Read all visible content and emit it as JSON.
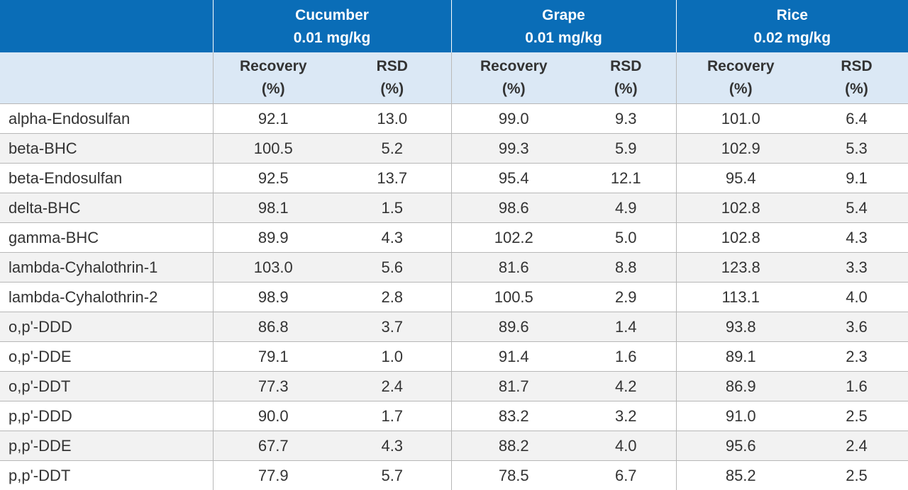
{
  "groups": [
    {
      "name": "Cucumber",
      "concentration": "0.01 mg/kg"
    },
    {
      "name": "Grape",
      "concentration": "0.01 mg/kg"
    },
    {
      "name": "Rice",
      "concentration": "0.02 mg/kg"
    }
  ],
  "subheaders": {
    "recovery_line1": "Recovery",
    "recovery_line2": "(%)",
    "rsd_line1": "RSD",
    "rsd_line2": "(%)"
  },
  "rows": [
    {
      "analyte": "alpha-Endosulfan",
      "values": [
        "92.1",
        "13.0",
        "99.0",
        "9.3",
        "101.0",
        "6.4"
      ]
    },
    {
      "analyte": "beta-BHC",
      "values": [
        "100.5",
        "5.2",
        "99.3",
        "5.9",
        "102.9",
        "5.3"
      ]
    },
    {
      "analyte": "beta-Endosulfan",
      "values": [
        "92.5",
        "13.7",
        "95.4",
        "12.1",
        "95.4",
        "9.1"
      ]
    },
    {
      "analyte": "delta-BHC",
      "values": [
        "98.1",
        "1.5",
        "98.6",
        "4.9",
        "102.8",
        "5.4"
      ]
    },
    {
      "analyte": "gamma-BHC",
      "values": [
        "89.9",
        "4.3",
        "102.2",
        "5.0",
        "102.8",
        "4.3"
      ]
    },
    {
      "analyte": "lambda-Cyhalothrin-1",
      "values": [
        "103.0",
        "5.6",
        "81.6",
        "8.8",
        "123.8",
        "3.3"
      ]
    },
    {
      "analyte": "lambda-Cyhalothrin-2",
      "values": [
        "98.9",
        "2.8",
        "100.5",
        "2.9",
        "113.1",
        "4.0"
      ]
    },
    {
      "analyte": "o,p'-DDD",
      "values": [
        "86.8",
        "3.7",
        "89.6",
        "1.4",
        "93.8",
        "3.6"
      ]
    },
    {
      "analyte": "o,p'-DDE",
      "values": [
        "79.1",
        "1.0",
        "91.4",
        "1.6",
        "89.1",
        "2.3"
      ]
    },
    {
      "analyte": "o,p'-DDT",
      "values": [
        "77.3",
        "2.4",
        "81.7",
        "4.2",
        "86.9",
        "1.6"
      ]
    },
    {
      "analyte": "p,p'-DDD",
      "values": [
        "90.0",
        "1.7",
        "83.2",
        "3.2",
        "91.0",
        "2.5"
      ]
    },
    {
      "analyte": "p,p'-DDE",
      "values": [
        "67.7",
        "4.3",
        "88.2",
        "4.0",
        "95.6",
        "2.4"
      ]
    },
    {
      "analyte": "p,p'-DDT",
      "values": [
        "77.9",
        "5.7",
        "78.5",
        "6.7",
        "85.2",
        "2.5"
      ]
    }
  ],
  "colors": {
    "header_blue": "#0a6db7",
    "subheader_bg": "#dbe8f5",
    "stripe_bg": "#f2f2f2"
  }
}
